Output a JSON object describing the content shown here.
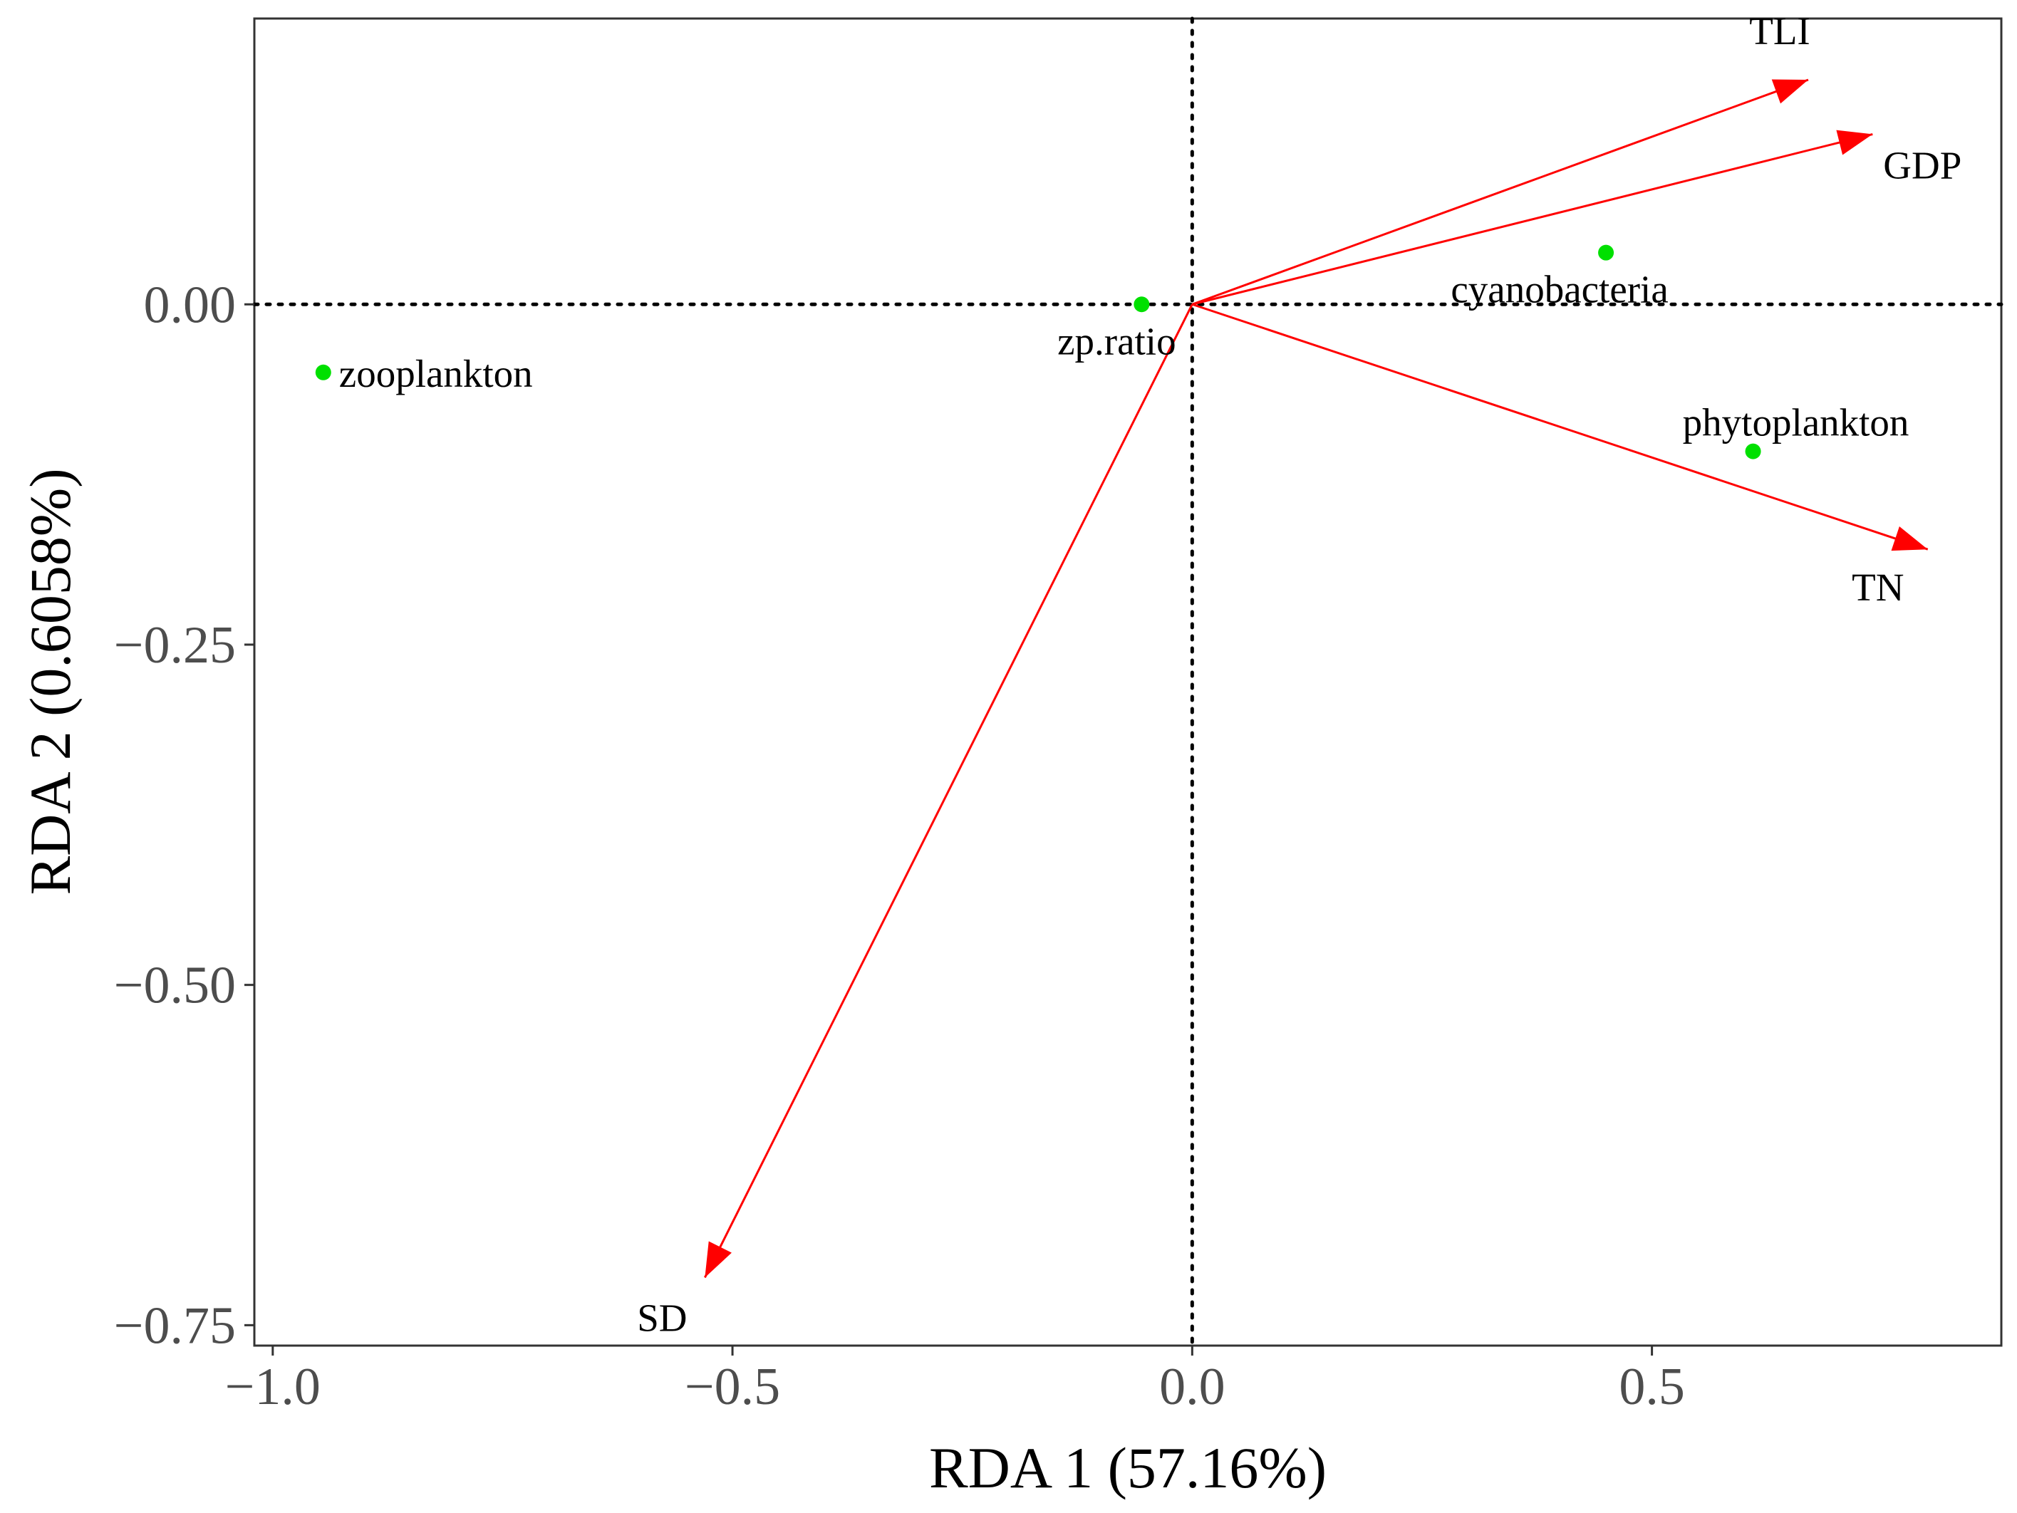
{
  "chart_data": {
    "type": "scatter",
    "subtype": "RDA biplot",
    "title": "",
    "xlabel": "RDA 1 (57.16%)",
    "ylabel": "RDA 2 (0.6058%)",
    "xlim": [
      -1.02,
      0.88
    ],
    "ylim": [
      -0.765,
      0.21
    ],
    "x_ticks": [
      -1.0,
      -0.5,
      0.0,
      0.5
    ],
    "x_tick_labels": [
      "−1.0",
      "−0.5",
      "0.0",
      "0.5"
    ],
    "y_ticks": [
      0.0,
      -0.25,
      -0.5,
      -0.75
    ],
    "y_tick_labels": [
      "0.00",
      "−0.25",
      "−0.50",
      "−0.75"
    ],
    "grid": false,
    "reference_lines": {
      "x": 0,
      "y": 0,
      "style": "dotted"
    },
    "arrow_color": "#ff0000",
    "point_color": "#00e000",
    "environmental_vectors": [
      {
        "name": "TLI",
        "x": 0.67,
        "y": 0.165
      },
      {
        "name": "GDP",
        "x": 0.74,
        "y": 0.125
      },
      {
        "name": "TN",
        "x": 0.8,
        "y": -0.18
      },
      {
        "name": "SD",
        "x": -0.53,
        "y": -0.715
      }
    ],
    "response_points": [
      {
        "name": "zooplankton",
        "x": -0.945,
        "y": -0.05
      },
      {
        "name": "zp.ratio",
        "x": -0.055,
        "y": 0.0
      },
      {
        "name": "cyanobacteria",
        "x": 0.45,
        "y": 0.038
      },
      {
        "name": "phytoplankton",
        "x": 0.61,
        "y": -0.108
      }
    ]
  }
}
